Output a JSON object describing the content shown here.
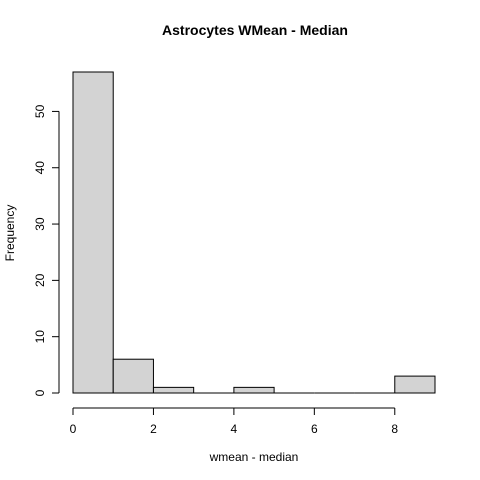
{
  "chart_data": {
    "type": "bar",
    "subtype": "histogram",
    "title": "Astrocytes WMean - Median",
    "xlabel": "wmean - median",
    "ylabel": "Frequency",
    "bins": [
      {
        "from": 0,
        "to": 1,
        "count": 57
      },
      {
        "from": 1,
        "to": 2,
        "count": 6
      },
      {
        "from": 2,
        "to": 3,
        "count": 1
      },
      {
        "from": 3,
        "to": 4,
        "count": 0
      },
      {
        "from": 4,
        "to": 5,
        "count": 1
      },
      {
        "from": 5,
        "to": 6,
        "count": 0
      },
      {
        "from": 6,
        "to": 7,
        "count": 0
      },
      {
        "from": 7,
        "to": 8,
        "count": 0
      },
      {
        "from": 8,
        "to": 9,
        "count": 3
      }
    ],
    "xlim": [
      0,
      9
    ],
    "ylim": [
      0,
      57
    ],
    "xticks": [
      0,
      2,
      4,
      6,
      8
    ],
    "yticks": [
      0,
      10,
      20,
      30,
      40,
      50
    ],
    "bar_color": "#d3d3d3",
    "grid": false
  }
}
